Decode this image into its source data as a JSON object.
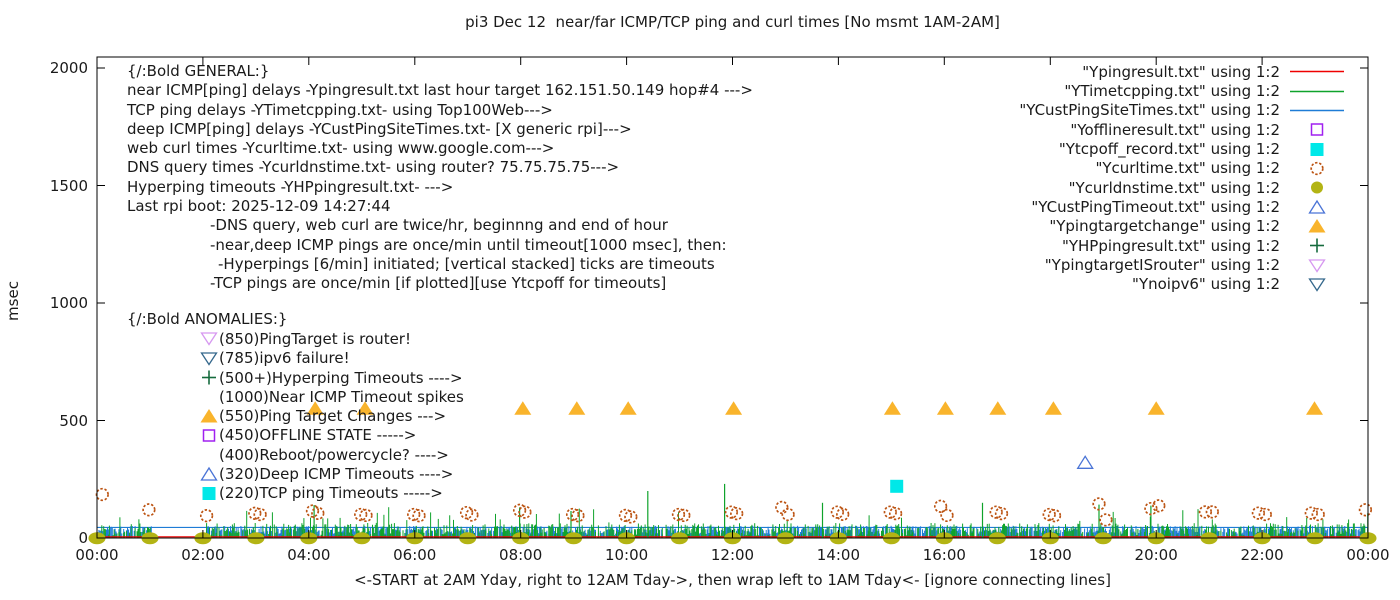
{
  "title": "pi3 Dec 12  near/far ICMP/TCP ping and curl times [No msmt 1AM-2AM]",
  "axes": {
    "y_label": "msec",
    "y_ticks": [
      0,
      500,
      1000,
      1500,
      2000
    ],
    "x_ticks": [
      "00:00",
      "02:00",
      "04:00",
      "06:00",
      "08:00",
      "10:00",
      "12:00",
      "14:00",
      "16:00",
      "18:00",
      "20:00",
      "22:00",
      "00:00"
    ],
    "x_label": "<-START at 2AM Yday, right to 12AM Tday->, then wrap left to 1AM Tday<- [ignore connecting lines]"
  },
  "legend": [
    {
      "label": "\"Ypingresult.txt\" using 1:2",
      "marker": "line",
      "color": "#ef0000"
    },
    {
      "label": "\"YTimetcpping.txt\" using 1:2",
      "marker": "line",
      "color": "#0fa32b"
    },
    {
      "label": "\"YCustPingSiteTimes.txt\" using 1:2",
      "marker": "line",
      "color": "#1e7cd6"
    },
    {
      "label": "\"Yofflineresult.txt\" using 1:2",
      "marker": "square-open",
      "color": "#a020f0"
    },
    {
      "label": "\"Ytcpoff_record.txt\" using 1:2",
      "marker": "square",
      "color": "#00e8e8"
    },
    {
      "label": "\"Ycurltime.txt\" using 1:2",
      "marker": "circle-open",
      "color": "#bc5413"
    },
    {
      "label": "\"Ycurldnstime.txt\" using 1:2",
      "marker": "circle",
      "color": "#b3b414"
    },
    {
      "label": "\"YCustPingTimeout.txt\" using 1:2",
      "marker": "triangle-open",
      "color": "#4a74d6"
    },
    {
      "label": "\"Ypingtargetchange\" using 1:2",
      "marker": "triangle",
      "color": "#f9b42c"
    },
    {
      "label": "\"YHPpingresult.txt\" using 1:2",
      "marker": "plus",
      "color": "#156b3d"
    },
    {
      "label": "\"YpingtargetISrouter\" using 1:2",
      "marker": "triangle-down-open",
      "color": "#d698f0"
    },
    {
      "label": "\"Ynoipv6\" using 1:2",
      "marker": "triangle-down-open",
      "color": "#35688c"
    }
  ],
  "notes_general": {
    "lines": [
      {
        "text": "{/:Bold GENERAL:}",
        "indent": 0
      },
      {
        "text": "near ICMP[ping] delays -Ypingresult.txt last hour target 162.151.50.149 hop#4 --->",
        "indent": 0
      },
      {
        "text": "TCP ping delays -YTimetcpping.txt- using Top100Web--->",
        "indent": 0
      },
      {
        "text": "deep ICMP[ping] delays -YCustPingSiteTimes.txt- [X generic rpi]--->",
        "indent": 0
      },
      {
        "text": "web curl times -Ycurltime.txt- using www.google.com--->",
        "indent": 0
      },
      {
        "text": "DNS query times -Ycurldnstime.txt- using router? 75.75.75.75--->",
        "indent": 0
      },
      {
        "text": "Hyperping timeouts -YHPpingresult.txt- --->",
        "indent": 0
      },
      {
        "text": "Last rpi boot: 2025-12-09 14:27:44",
        "indent": 0
      },
      {
        "text": "-DNS query, web curl are twice/hr, beginnng and end of hour",
        "indent": 1
      },
      {
        "text": "-near,deep ICMP pings are once/min until timeout[1000 msec], then:",
        "indent": 1
      },
      {
        "text": "-Hyperpings [6/min] initiated; [vertical stacked] ticks are timeouts",
        "indent": 2
      },
      {
        "text": "-TCP pings are once/min [if plotted][use Ytcpoff for timeouts]",
        "indent": 1
      }
    ]
  },
  "notes_anomalies": {
    "header": "{/:Bold ANOMALIES:}",
    "items": [
      {
        "icon": "triangle-down-open",
        "color": "#d698f0",
        "text": "(850)PingTarget is router!"
      },
      {
        "icon": "triangle-down-open",
        "color": "#35688c",
        "text": "(785)ipv6 failure!"
      },
      {
        "icon": "plus",
        "color": "#156b3d",
        "text": "(500+)Hyperping Timeouts ---->"
      },
      {
        "icon": "none",
        "color": "",
        "text": "(1000)Near ICMP Timeout spikes"
      },
      {
        "icon": "triangle",
        "color": "#f9b42c",
        "text": "(550)Ping Target Changes --->"
      },
      {
        "icon": "square-open",
        "color": "#a020f0",
        "text": "(450)OFFLINE STATE ----->"
      },
      {
        "icon": "none",
        "color": "",
        "text": "(400)Reboot/powercycle? ---->"
      },
      {
        "icon": "triangle-open",
        "color": "#4a74d6",
        "text": "(320)Deep ICMP Timeouts ---->"
      },
      {
        "icon": "square",
        "color": "#00e8e8",
        "text": "(220)TCP ping Timeouts ----->"
      }
    ]
  },
  "chart_data": {
    "type": "line",
    "x_unit": "hours",
    "x_range": [
      0,
      24
    ],
    "y_range": [
      0,
      2000
    ],
    "grid": false,
    "legend_position": "top-right-inside",
    "gap": {
      "from": 1.04,
      "to": 2.04,
      "note": "No msmt 1AM-2AM"
    },
    "series": [
      {
        "name": "Ypingresult.txt",
        "role": "near ICMP ping delay",
        "style": "line",
        "color": "#ef0000",
        "baseline_msec": 5
      },
      {
        "name": "YTimetcpping.txt",
        "role": "TCP ping delay",
        "style": "spikes",
        "color": "#0fa32b",
        "band_msec": [
          4,
          64
        ],
        "tall_spikes": [
          [
            4.1,
            140
          ],
          [
            7.98,
            130
          ],
          [
            8.95,
            115
          ],
          [
            10.4,
            200
          ],
          [
            11.85,
            230
          ],
          [
            13.7,
            150
          ],
          [
            16.72,
            150
          ],
          [
            18.92,
            142
          ],
          [
            19.9,
            138
          ]
        ]
      },
      {
        "name": "YCustPingSiteTimes.txt",
        "role": "deep ICMP ping delay",
        "style": "line+ticks",
        "color": "#1e7cd6",
        "line_msec": 45,
        "tick_band_msec": [
          18,
          52
        ]
      },
      {
        "name": "Yofflineresult.txt",
        "style": "points",
        "marker": "square-open",
        "color": "#a020f0",
        "points": []
      },
      {
        "name": "Ytcpoff_record.txt",
        "style": "points",
        "marker": "square",
        "color": "#00e8e8",
        "points": [
          [
            15.1,
            220
          ]
        ]
      },
      {
        "name": "Ycurltime.txt",
        "style": "points",
        "marker": "circle-open",
        "color": "#bc5413",
        "points": [
          [
            0.1,
            185
          ],
          [
            0.98,
            120
          ],
          [
            2.07,
            95
          ],
          [
            2.98,
            105
          ],
          [
            3.08,
            100
          ],
          [
            4.07,
            115
          ],
          [
            4.17,
            105
          ],
          [
            4.98,
            100
          ],
          [
            5.08,
            96
          ],
          [
            5.98,
            100
          ],
          [
            6.08,
            95
          ],
          [
            6.98,
            108
          ],
          [
            7.08,
            98
          ],
          [
            7.98,
            118
          ],
          [
            8.08,
            110
          ],
          [
            8.98,
            100
          ],
          [
            9.08,
            95
          ],
          [
            9.98,
            96
          ],
          [
            10.08,
            90
          ],
          [
            10.98,
            100
          ],
          [
            11.08,
            96
          ],
          [
            11.98,
            110
          ],
          [
            12.08,
            104
          ],
          [
            12.93,
            130
          ],
          [
            13.05,
            100
          ],
          [
            13.98,
            110
          ],
          [
            14.08,
            101
          ],
          [
            14.98,
            110
          ],
          [
            15.08,
            104
          ],
          [
            15.93,
            135
          ],
          [
            16.05,
            96
          ],
          [
            16.98,
            110
          ],
          [
            17.08,
            104
          ],
          [
            17.98,
            100
          ],
          [
            18.08,
            95
          ],
          [
            18.92,
            145
          ],
          [
            19.05,
            77
          ],
          [
            19.9,
            125
          ],
          [
            20.05,
            137
          ],
          [
            20.93,
            111
          ],
          [
            21.06,
            111
          ],
          [
            21.93,
            106
          ],
          [
            22.06,
            100
          ],
          [
            22.93,
            106
          ],
          [
            23.06,
            100
          ],
          [
            23.95,
            120
          ]
        ]
      },
      {
        "name": "Ycurldnstime.txt",
        "style": "points",
        "marker": "blob",
        "color": "#b3b414",
        "points": [
          [
            0,
            5
          ],
          [
            1,
            5
          ],
          [
            2,
            5
          ],
          [
            3,
            5
          ],
          [
            4,
            5
          ],
          [
            5,
            5
          ],
          [
            6,
            5
          ],
          [
            7,
            5
          ],
          [
            8,
            5
          ],
          [
            9,
            5
          ],
          [
            10,
            5
          ],
          [
            11,
            5
          ],
          [
            12,
            5
          ],
          [
            13,
            5
          ],
          [
            14,
            5
          ],
          [
            15,
            5
          ],
          [
            16,
            5
          ],
          [
            17,
            5
          ],
          [
            18,
            5
          ],
          [
            19,
            5
          ],
          [
            20,
            5
          ],
          [
            21,
            5
          ],
          [
            22,
            5
          ],
          [
            23,
            5
          ],
          [
            24,
            5
          ]
        ]
      },
      {
        "name": "YCustPingTimeout.txt",
        "style": "points",
        "marker": "triangle-open",
        "color": "#4a74d6",
        "points": [
          [
            18.66,
            320
          ]
        ]
      },
      {
        "name": "Ypingtargetchange",
        "style": "points",
        "marker": "triangle",
        "color": "#f9b42c",
        "points": [
          [
            4.12,
            550
          ],
          [
            5.06,
            550
          ],
          [
            8.04,
            550
          ],
          [
            9.06,
            550
          ],
          [
            10.03,
            550
          ],
          [
            12.02,
            550
          ],
          [
            15.02,
            550
          ],
          [
            16.02,
            550
          ],
          [
            17.01,
            550
          ],
          [
            18.06,
            550
          ],
          [
            20.0,
            550
          ],
          [
            22.99,
            550
          ]
        ]
      },
      {
        "name": "YHPpingresult.txt",
        "style": "points",
        "marker": "plus",
        "color": "#156b3d",
        "points": []
      },
      {
        "name": "YpingtargetISrouter",
        "style": "points",
        "marker": "triangle-down-open",
        "color": "#d698f0",
        "points": []
      },
      {
        "name": "Ynoipv6",
        "style": "points",
        "marker": "triangle-down-open",
        "color": "#35688c",
        "points": []
      }
    ]
  }
}
